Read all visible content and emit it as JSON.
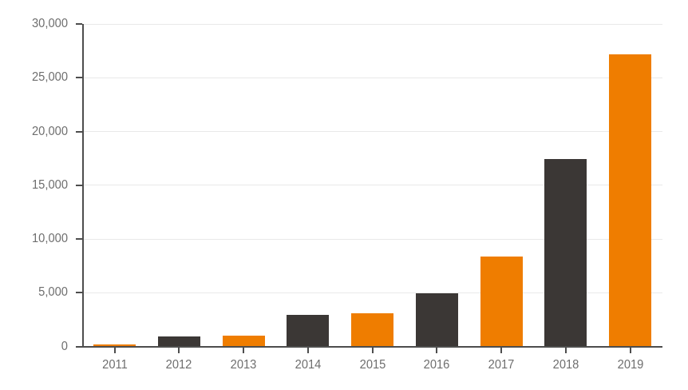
{
  "chart_data": {
    "type": "bar",
    "title": "",
    "xlabel": "",
    "ylabel": "",
    "categories": [
      "2011",
      "2012",
      "2013",
      "2014",
      "2015",
      "2016",
      "2017",
      "2018",
      "2019"
    ],
    "values": [
      200,
      900,
      1000,
      2900,
      3100,
      4950,
      8400,
      17400,
      27200
    ],
    "bar_colors": [
      "#ef7d00",
      "#3b3735",
      "#ef7d00",
      "#3b3735",
      "#ef7d00",
      "#3b3735",
      "#ef7d00",
      "#3b3735",
      "#ef7d00"
    ],
    "ylim": [
      0,
      30000
    ],
    "y_ticks": [
      0,
      5000,
      10000,
      15000,
      20000,
      25000,
      30000
    ],
    "y_tick_labels": [
      "0",
      "5,000",
      "10,000",
      "15,000",
      "20,000",
      "25,000",
      "30,000"
    ],
    "grid": "horizontal",
    "legend_position": "none"
  },
  "colors": {
    "bar_orange": "#ef7d00",
    "bar_dark": "#3b3735",
    "axis": "#4d4d4d",
    "gridline": "#e9e9e9",
    "tick_label": "#6e6e6e",
    "background": "#ffffff"
  }
}
